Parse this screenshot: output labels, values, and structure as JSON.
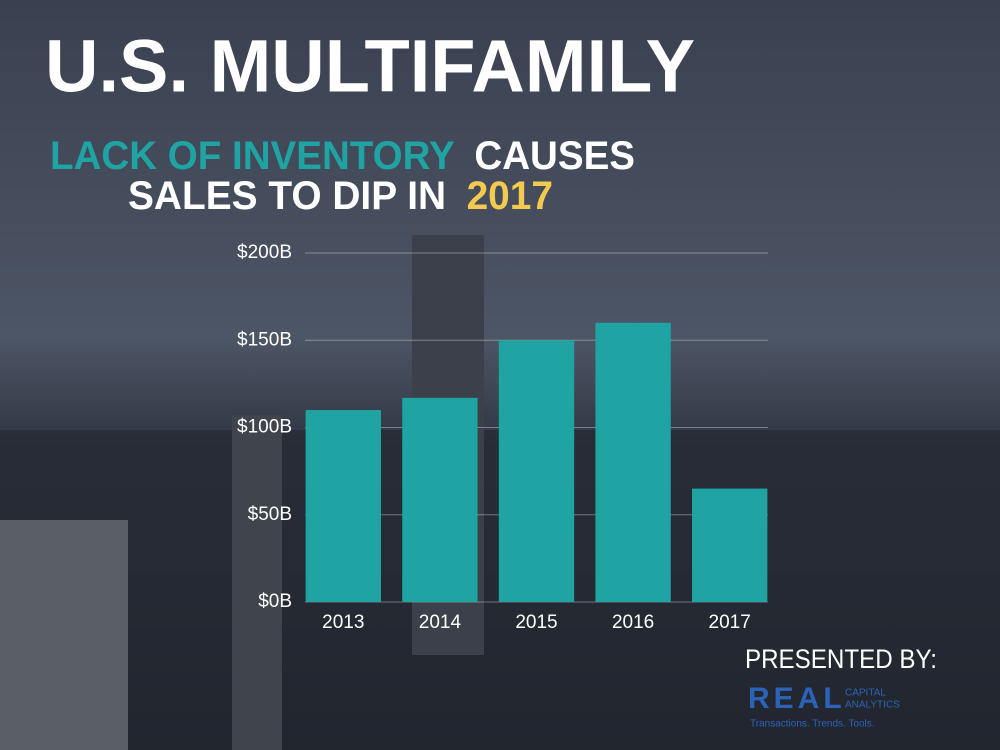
{
  "chart_data": {
    "type": "bar",
    "title": "U.S. MULTIFAMILY",
    "subtitle": [
      "LACK OF INVENTORY",
      "CAUSES",
      "SALES TO DIP IN",
      "2017"
    ],
    "categories": [
      "2013",
      "2014",
      "2015",
      "2016",
      "2017"
    ],
    "values": [
      110,
      117,
      150,
      160,
      65
    ],
    "color": "#1fa3a3",
    "ylim": [
      0,
      200
    ],
    "yticks": [
      {
        "value": 0,
        "label": "$0B"
      },
      {
        "value": 50,
        "label": "$50B"
      },
      {
        "value": 100,
        "label": "$100B"
      },
      {
        "value": 150,
        "label": "$150B"
      },
      {
        "value": 200,
        "label": "$200B"
      }
    ],
    "grid": true
  },
  "footer": {
    "presented_by": "PRESENTED BY:",
    "logo": "REAL",
    "logo_sub": [
      "CAPITAL",
      "ANALYTICS"
    ],
    "tagline": "Transactions. Trends. Tools."
  }
}
